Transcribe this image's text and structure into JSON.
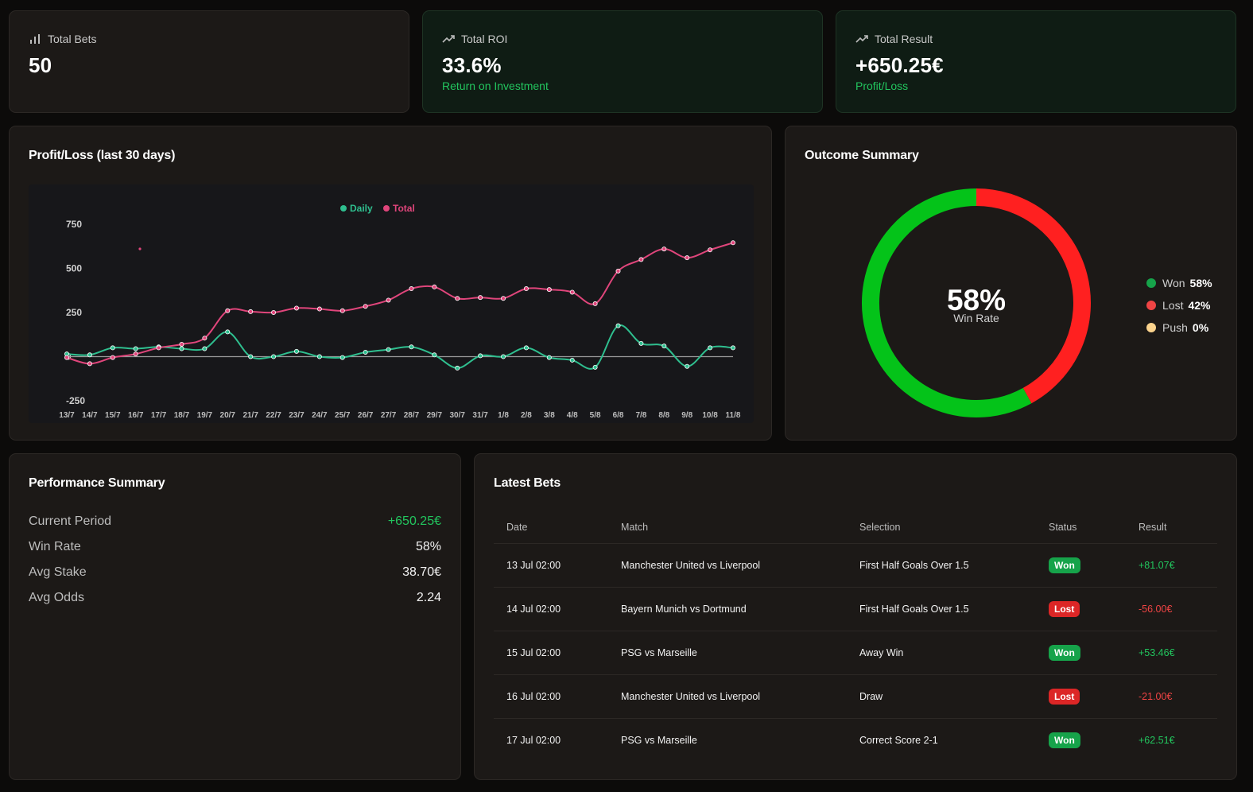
{
  "stats": [
    {
      "icon": "bar-chart-icon",
      "label": "Total Bets",
      "value": "50",
      "sub": ""
    },
    {
      "icon": "trending-up-icon",
      "label": "Total ROI",
      "value": "33.6%",
      "sub": "Return on Investment"
    },
    {
      "icon": "trending-up-icon",
      "label": "Total Result",
      "value": "+650.25€",
      "sub": "Profit/Loss"
    }
  ],
  "pl_chart": {
    "title": "Profit/Loss (last 30 days)"
  },
  "chart_data": {
    "type": "line",
    "title": "Profit/Loss (last 30 days)",
    "categories": [
      "13/7",
      "14/7",
      "15/7",
      "16/7",
      "17/7",
      "18/7",
      "19/7",
      "20/7",
      "21/7",
      "22/7",
      "23/7",
      "24/7",
      "25/7",
      "26/7",
      "27/7",
      "28/7",
      "29/7",
      "30/7",
      "31/7",
      "1/8",
      "2/8",
      "3/8",
      "4/8",
      "5/8",
      "6/8",
      "7/8",
      "8/8",
      "9/8",
      "10/8",
      "11/8"
    ],
    "series": [
      {
        "name": "Daily",
        "color": "#2fbf8f",
        "values": [
          15,
          10,
          50,
          45,
          55,
          45,
          45,
          140,
          0,
          0,
          30,
          0,
          -5,
          25,
          40,
          55,
          10,
          -65,
          5,
          0,
          50,
          -5,
          -20,
          -60,
          175,
          75,
          60,
          -55,
          50,
          50
        ]
      },
      {
        "name": "Total",
        "color": "#e0457b",
        "values": [
          -5,
          -40,
          -5,
          15,
          50,
          70,
          105,
          260,
          255,
          250,
          275,
          270,
          260,
          285,
          320,
          385,
          395,
          330,
          335,
          330,
          385,
          380,
          365,
          300,
          485,
          550,
          610,
          560,
          605,
          645
        ]
      }
    ],
    "yticks": [
      750,
      500,
      250,
      0,
      -250
    ],
    "ylim": [
      -250,
      750
    ],
    "legend": "top-center",
    "grid": false
  },
  "outcome": {
    "title": "Outcome Summary",
    "center_value": "58%",
    "center_label": "Win Rate",
    "segments": [
      {
        "name": "Won",
        "value": "58%",
        "fraction": 0.58,
        "color": "#04c319"
      },
      {
        "name": "Lost",
        "value": "42%",
        "fraction": 0.42,
        "color": "#ff2020"
      },
      {
        "name": "Push",
        "value": "0%",
        "fraction": 0,
        "color": "#fbd38d"
      }
    ]
  },
  "performance": {
    "title": "Performance Summary",
    "rows": [
      {
        "name": "Current Period",
        "value": "+650.25€"
      },
      {
        "name": "Win Rate",
        "value": "58%"
      },
      {
        "name": "Avg Stake",
        "value": "38.70€"
      },
      {
        "name": "Avg Odds",
        "value": "2.24"
      }
    ]
  },
  "bets": {
    "title": "Latest Bets",
    "columns": [
      "Date",
      "Match",
      "Selection",
      "Status",
      "Result"
    ],
    "rows": [
      {
        "date": "13 Jul 02:00",
        "match": "Manchester United vs Liverpool",
        "selection": "First Half Goals Over 1.5",
        "status": "Won",
        "result": "+81.07€"
      },
      {
        "date": "14 Jul 02:00",
        "match": "Bayern Munich vs Dortmund",
        "selection": "First Half Goals Over 1.5",
        "status": "Lost",
        "result": "-56.00€"
      },
      {
        "date": "15 Jul 02:00",
        "match": "PSG vs Marseille",
        "selection": "Away Win",
        "status": "Won",
        "result": "+53.46€"
      },
      {
        "date": "16 Jul 02:00",
        "match": "Manchester United vs Liverpool",
        "selection": "Draw",
        "status": "Lost",
        "result": "-21.00€"
      },
      {
        "date": "17 Jul 02:00",
        "match": "PSG vs Marseille",
        "selection": "Correct Score 2-1",
        "status": "Won",
        "result": "+62.51€"
      }
    ]
  }
}
